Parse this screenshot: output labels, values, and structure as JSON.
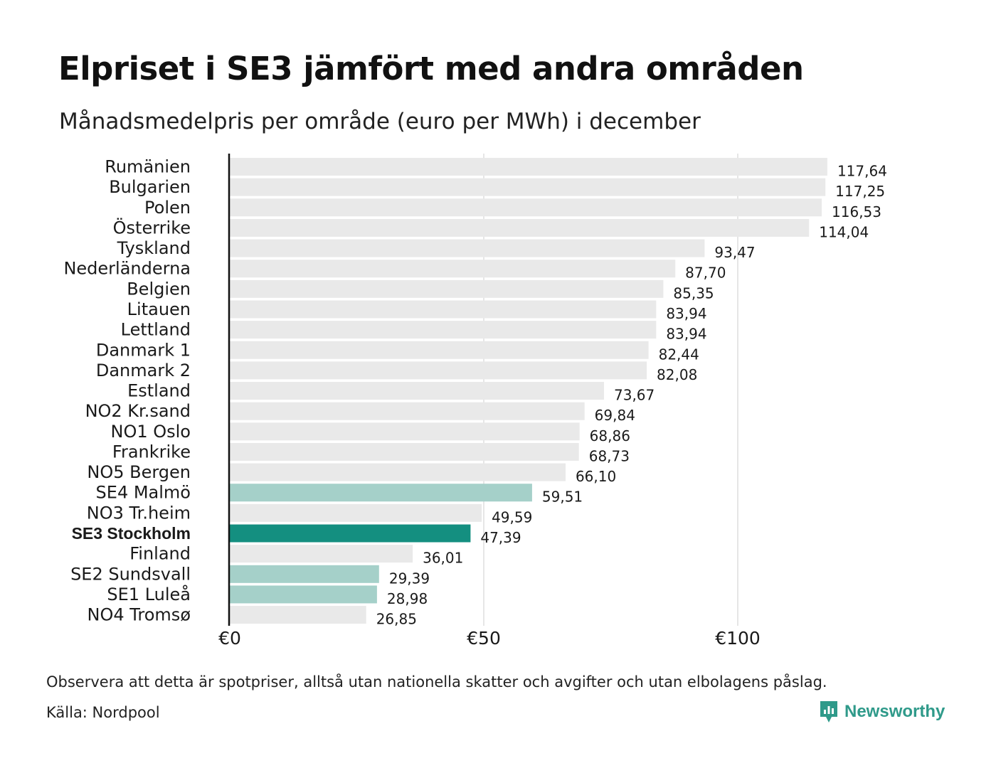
{
  "title": "Elpriset i SE3 jämfört med andra områden",
  "subtitle": "Månadsmedelpris per område (euro per MWh) i december",
  "note": "Observera att detta är spotpriser, alltså utan nationella skatter och avgifter och utan elbolagens påslag.",
  "source": "Källa: Nordpool",
  "brand": {
    "name": "Newsworthy",
    "icon": "newsworthy-logo-icon"
  },
  "colors": {
    "default": "#e9e9e9",
    "highlight": "#148f80",
    "light_highlight": "#a5d0c9",
    "axis": "#111111",
    "grid": "#d6d6d6"
  },
  "chart_data": {
    "type": "bar",
    "orientation": "horizontal",
    "title": "Elpriset i SE3 jämfört med andra områden",
    "subtitle": "Månadsmedelpris per område (euro per MWh) i december",
    "xlabel": "",
    "ylabel": "",
    "xlim": [
      0,
      125
    ],
    "grid": true,
    "x_ticks": [
      {
        "value": 0,
        "label": "€0"
      },
      {
        "value": 50,
        "label": "€50"
      },
      {
        "value": 100,
        "label": "€100"
      }
    ],
    "categories": [
      "Rumänien",
      "Bulgarien",
      "Polen",
      "Österrike",
      "Tyskland",
      "Nederländerna",
      "Belgien",
      "Litauen",
      "Lettland",
      "Danmark  1",
      "Danmark  2",
      "Estland",
      "NO2 Kr.sand",
      "NO1 Oslo",
      "Frankrike",
      "NO5 Bergen",
      "SE4  Malmö",
      "NO3 Tr.heim",
      "SE3 Stockholm",
      "Finland",
      "SE2  Sundsvall",
      "SE1  Luleå",
      "NO4 Tromsø"
    ],
    "values": [
      117.64,
      117.25,
      116.53,
      114.04,
      93.47,
      87.7,
      85.35,
      83.94,
      83.94,
      82.44,
      82.08,
      73.67,
      69.84,
      68.86,
      68.73,
      66.1,
      59.51,
      49.59,
      47.39,
      36.01,
      29.39,
      28.98,
      26.85
    ],
    "value_labels": [
      "117,64",
      "117,25",
      "116,53",
      "114,04",
      "93,47",
      "87,70",
      "85,35",
      "83,94",
      "83,94",
      "82,44",
      "82,08",
      "73,67",
      "69,84",
      "68,86",
      "68,73",
      "66,10",
      "59,51",
      "49,59",
      "47,39",
      "36,01",
      "29,39",
      "28,98",
      "26,85"
    ],
    "highlight": [
      "default",
      "default",
      "default",
      "default",
      "default",
      "default",
      "default",
      "default",
      "default",
      "default",
      "default",
      "default",
      "default",
      "default",
      "default",
      "default",
      "light",
      "default",
      "strong",
      "default",
      "light",
      "light",
      "default"
    ]
  }
}
